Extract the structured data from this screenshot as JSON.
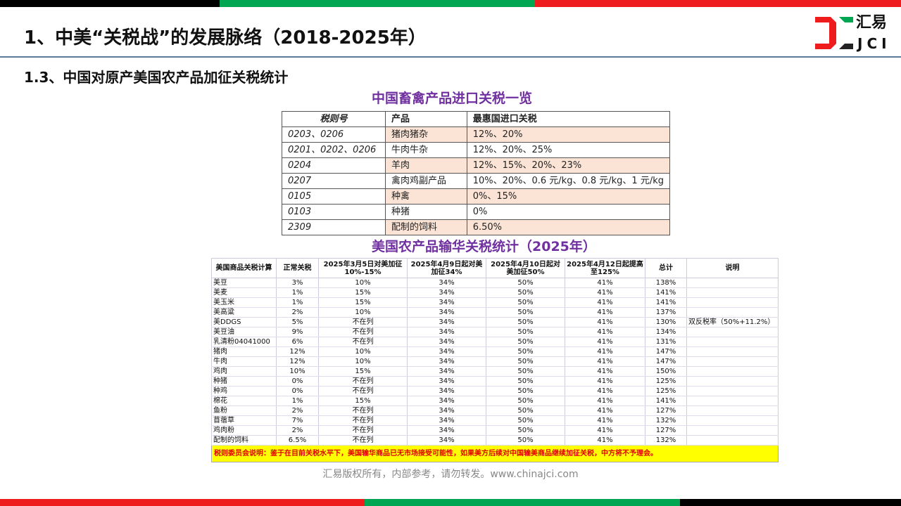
{
  "colors": {
    "black": "#000000",
    "green": "#00a651",
    "red": "#ee1c1c",
    "title_purple": "#7030a0",
    "highlight": "#fbe4d5",
    "note_yellow": "#ffff00",
    "note_red": "#e00000"
  },
  "header": {
    "title": "1、中美“关税战”的发展脉络（2018-2025年）",
    "subtitle": "1.3、中国对原产美国农产品加征关税统计"
  },
  "logo": {
    "zh": "汇易",
    "en": "JCI"
  },
  "table1": {
    "title": "中国畜禽产品进口关税一览",
    "headers": [
      "税则号",
      "产品",
      "最惠国进口关税"
    ],
    "rows": [
      {
        "code": "0203、0206",
        "product": "猪肉猪杂",
        "rate": "12%、20%",
        "hl": true
      },
      {
        "code": "0201、0202、0206",
        "product": "牛肉牛杂",
        "rate": "12%、20%、25%",
        "hl": false
      },
      {
        "code": "0204",
        "product": "羊肉",
        "rate": "12%、15%、20%、23%",
        "hl": true
      },
      {
        "code": "0207",
        "product": "禽肉鸡副产品",
        "rate": "10%、20%、0.6 元/kg、0.8 元/kg、1 元/kg",
        "hl": false
      },
      {
        "code": "0105",
        "product": "种禽",
        "rate": "0%、15%",
        "hl": true
      },
      {
        "code": "0103",
        "product": "种猪",
        "rate": "0%",
        "hl": false
      },
      {
        "code": "2309",
        "product": "配制的饲料",
        "rate": "6.50%",
        "hl": true
      }
    ]
  },
  "table2": {
    "title": "美国农产品输华关税统计（2025年）",
    "headers": [
      "美国商品关税计算",
      "正常关税",
      "2025年3月5日对美加征10%-15%",
      "2025年4月9日起对美加征34%",
      "2025年4月10日起对美加征50%",
      "2025年4月12日起提高至125%",
      "总计",
      "说明"
    ],
    "rows": [
      [
        "美豆",
        "3%",
        "10%",
        "34%",
        "50%",
        "41%",
        "138%",
        ""
      ],
      [
        "美麦",
        "1%",
        "15%",
        "34%",
        "50%",
        "41%",
        "141%",
        ""
      ],
      [
        "美玉米",
        "1%",
        "15%",
        "34%",
        "50%",
        "41%",
        "141%",
        ""
      ],
      [
        "美高粱",
        "2%",
        "10%",
        "34%",
        "50%",
        "41%",
        "137%",
        ""
      ],
      [
        "美DDGS",
        "5%",
        "不在列",
        "34%",
        "50%",
        "41%",
        "130%",
        "双反税率（50%+11.2%）"
      ],
      [
        "美豆油",
        "9%",
        "不在列",
        "34%",
        "50%",
        "41%",
        "134%",
        ""
      ],
      [
        "乳清粉04041000",
        "6%",
        "不在列",
        "34%",
        "50%",
        "41%",
        "131%",
        ""
      ],
      [
        "猪肉",
        "12%",
        "10%",
        "34%",
        "50%",
        "41%",
        "147%",
        ""
      ],
      [
        "牛肉",
        "12%",
        "10%",
        "34%",
        "50%",
        "41%",
        "147%",
        ""
      ],
      [
        "鸡肉",
        "10%",
        "15%",
        "34%",
        "50%",
        "41%",
        "150%",
        ""
      ],
      [
        "种猪",
        "0%",
        "不在列",
        "34%",
        "50%",
        "41%",
        "125%",
        ""
      ],
      [
        "种鸡",
        "0%",
        "不在列",
        "34%",
        "50%",
        "41%",
        "125%",
        ""
      ],
      [
        "棉花",
        "1%",
        "15%",
        "34%",
        "50%",
        "41%",
        "141%",
        ""
      ],
      [
        "鱼粉",
        "2%",
        "不在列",
        "34%",
        "50%",
        "41%",
        "127%",
        ""
      ],
      [
        "苜蓿草",
        "7%",
        "不在列",
        "34%",
        "50%",
        "41%",
        "132%",
        ""
      ],
      [
        "鸡肉粉",
        "2%",
        "不在列",
        "34%",
        "50%",
        "41%",
        "127%",
        ""
      ],
      [
        "配制的饲料",
        "6.5%",
        "不在列",
        "34%",
        "50%",
        "41%",
        "132%",
        ""
      ]
    ],
    "footnote": "税则委员会说明：鉴于在目前关税水平下，美国输华商品已无市场接受可能性，如果美方后续对中国输美商品继续加征关税，中方将不予理会。"
  },
  "footer": "汇易版权所有，内部参考，请勿转发。www.chinajci.com"
}
